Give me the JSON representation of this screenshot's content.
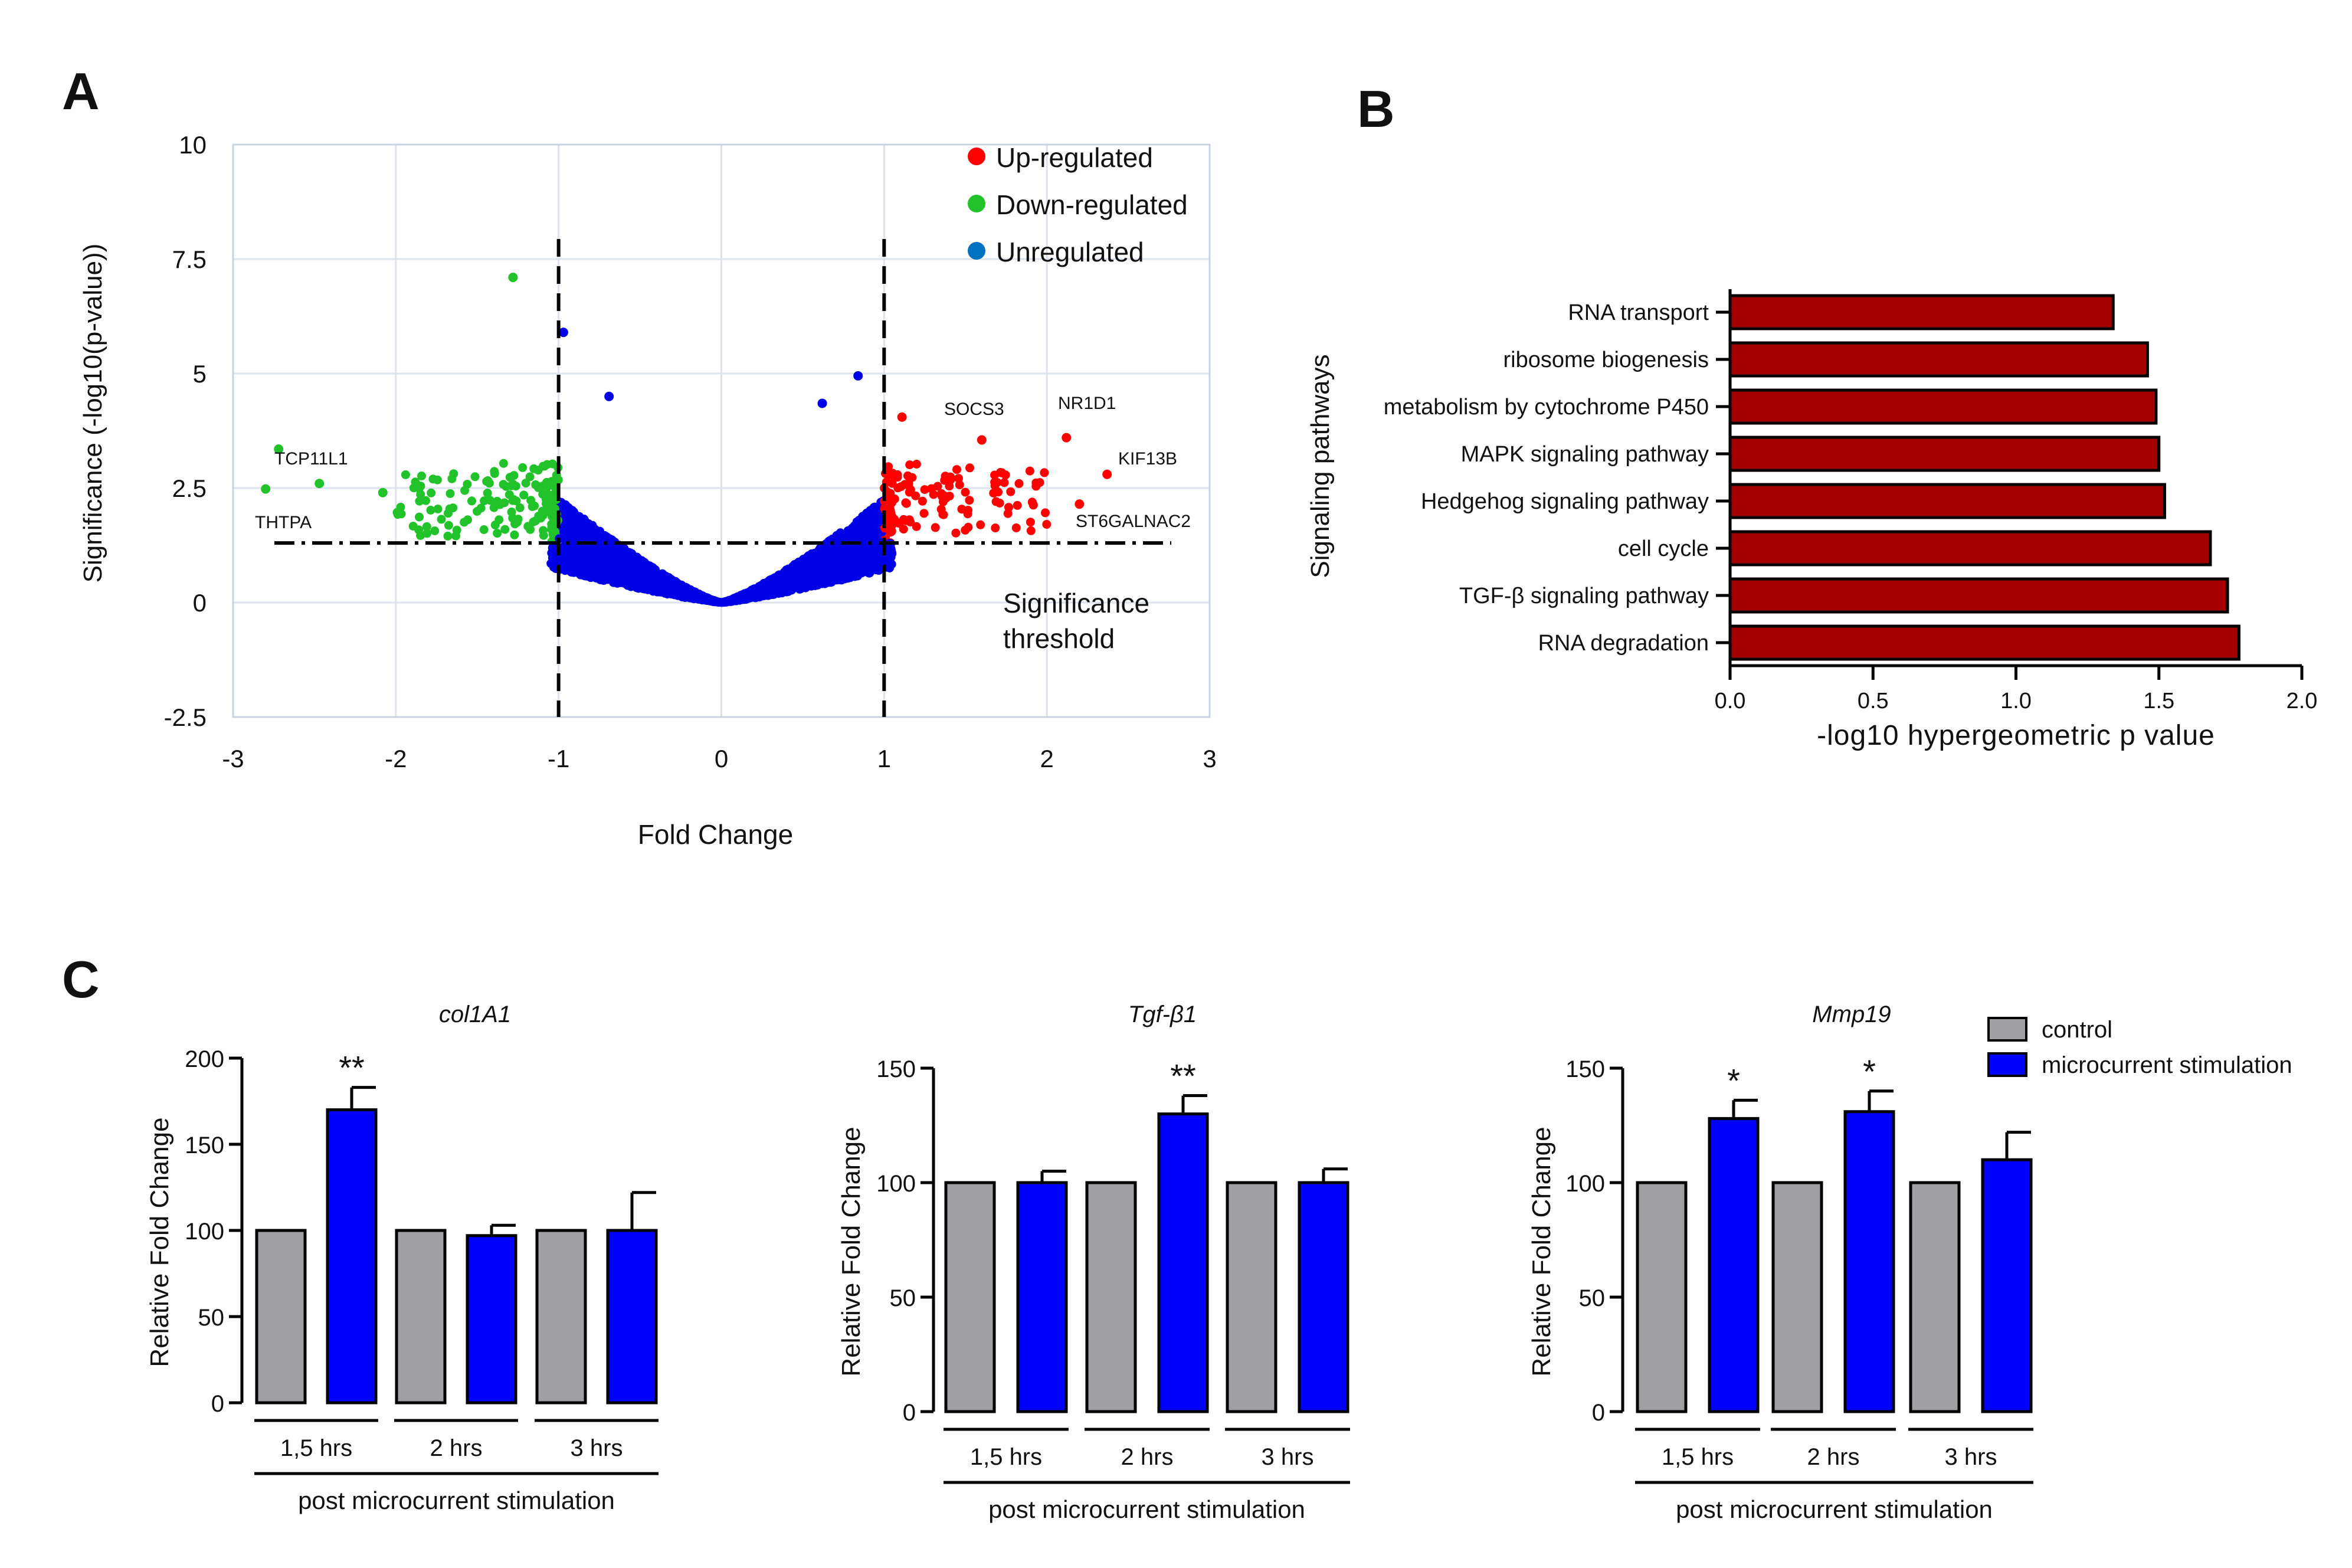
{
  "panel_labels": {
    "a": "A",
    "b": "B",
    "c": "C"
  },
  "colors": {
    "up": "#ff0000",
    "down": "#22c32a",
    "unreg": "#0000e6",
    "legend_unreg": "#0070c0",
    "pathway_bar": "#a50000",
    "control": "#a0a0a4",
    "stim": "#0000ff"
  },
  "chart_data": [
    {
      "type": "scatter",
      "id": "volcano",
      "title": "",
      "xlabel": "Fold Change",
      "ylabel": "Significance (-log10(p-value))",
      "xlim": [
        -3,
        3
      ],
      "ylim": [
        -2.5,
        10
      ],
      "xticks": [
        "-3",
        "-2",
        "-1",
        "0",
        "1",
        "2",
        "3"
      ],
      "yticks": [
        "10",
        "7.5",
        "5",
        "2.5",
        "0",
        "-2.5"
      ],
      "grid": true,
      "legend_position": "top-right",
      "legend": [
        {
          "label": "Up-regulated",
          "color_key": "up"
        },
        {
          "label": "Down-regulated",
          "color_key": "down"
        },
        {
          "label": "Unregulated",
          "color_key": "legend_unreg"
        }
      ],
      "fold_change_thresholds": [
        -1,
        1
      ],
      "significance_threshold": 1.3,
      "threshold_label": [
        "Significance",
        "threshold"
      ],
      "labeled_genes": [
        {
          "name": "TCP11L1",
          "x": -2.72,
          "y": 3.35,
          "color_key": "down"
        },
        {
          "name": "THTPA",
          "x": -2.8,
          "y": 2.48,
          "color_key": "down"
        },
        {
          "name": "SOCS3",
          "x": 1.6,
          "y": 3.55,
          "color_key": "up"
        },
        {
          "name": "NR1D1",
          "x": 2.12,
          "y": 3.6,
          "color_key": "up"
        },
        {
          "name": "KIF13B",
          "x": 2.37,
          "y": 2.8,
          "color_key": "up"
        },
        {
          "name": "ST6GALNAC2",
          "x": 2.2,
          "y": 2.15,
          "color_key": "up"
        }
      ],
      "highlight_points": [
        {
          "x": -1.28,
          "y": 7.1,
          "color_key": "down"
        },
        {
          "x": -0.97,
          "y": 5.9,
          "color_key": "unreg"
        },
        {
          "x": -0.69,
          "y": 4.5,
          "color_key": "unreg"
        },
        {
          "x": 0.84,
          "y": 4.95,
          "color_key": "unreg"
        },
        {
          "x": 0.62,
          "y": 4.35,
          "color_key": "unreg"
        },
        {
          "x": 1.11,
          "y": 4.05,
          "color_key": "up"
        },
        {
          "x": -2.47,
          "y": 2.6,
          "color_key": "down"
        },
        {
          "x": -2.08,
          "y": 2.4,
          "color_key": "down"
        }
      ]
    },
    {
      "type": "bar",
      "id": "pathways",
      "orientation": "horizontal",
      "xlabel": "-log10 hypergeometric p value",
      "ylabel": "Signaling pathways",
      "xlim": [
        0,
        2.0
      ],
      "xticks": [
        "0.0",
        "0.5",
        "1.0",
        "1.5",
        "2.0"
      ],
      "categories": [
        "RNA transport",
        "ribosome biogenesis",
        "metabolism by cytochrome P450",
        "MAPK signaling pathway",
        "Hedgehog signaling pathway",
        "cell cycle",
        "TGF-β signaling pathway",
        "RNA degradation"
      ],
      "values": [
        1.34,
        1.46,
        1.49,
        1.5,
        1.52,
        1.68,
        1.74,
        1.78
      ]
    },
    {
      "type": "bar",
      "id": "col1a1",
      "title": "col1A1",
      "ylabel": "Relative Fold Change",
      "ylim": [
        0,
        200
      ],
      "yticks": [
        "0",
        "50",
        "100",
        "150",
        "200"
      ],
      "groups": [
        "1,5 hrs",
        "2 hrs",
        "3 hrs"
      ],
      "group_caption": "post microcurrent stimulation",
      "series": [
        {
          "name": "control",
          "values": [
            100,
            100,
            100
          ]
        },
        {
          "name": "microcurrent stimulation",
          "values": [
            170,
            97,
            100
          ],
          "errors": [
            13,
            6,
            22
          ],
          "significance": [
            "**",
            "",
            ""
          ]
        }
      ]
    },
    {
      "type": "bar",
      "id": "tgfb1",
      "title": "Tgf-β1",
      "ylabel": "Relative Fold Change",
      "ylim": [
        0,
        150
      ],
      "yticks": [
        "0",
        "50",
        "100",
        "150"
      ],
      "groups": [
        "1,5 hrs",
        "2 hrs",
        "3 hrs"
      ],
      "group_caption": "post microcurrent stimulation",
      "series": [
        {
          "name": "control",
          "values": [
            100,
            100,
            100
          ]
        },
        {
          "name": "microcurrent stimulation",
          "values": [
            100,
            130,
            100
          ],
          "errors": [
            5,
            8,
            6
          ],
          "significance": [
            "",
            "**",
            ""
          ]
        }
      ]
    },
    {
      "type": "bar",
      "id": "mmp19",
      "title": "Mmp19",
      "ylabel": "Relative Fold Change",
      "ylim": [
        0,
        150
      ],
      "yticks": [
        "0",
        "50",
        "100",
        "150"
      ],
      "groups": [
        "1,5 hrs",
        "2 hrs",
        "3 hrs"
      ],
      "group_caption": "post microcurrent stimulation",
      "legend": [
        "control",
        "microcurrent stimulation"
      ],
      "legend_position": "top-right",
      "series": [
        {
          "name": "control",
          "values": [
            100,
            100,
            100
          ]
        },
        {
          "name": "microcurrent stimulation",
          "values": [
            128,
            131,
            110
          ],
          "errors": [
            8,
            9,
            12
          ],
          "significance": [
            "*",
            "*",
            ""
          ]
        }
      ]
    }
  ]
}
